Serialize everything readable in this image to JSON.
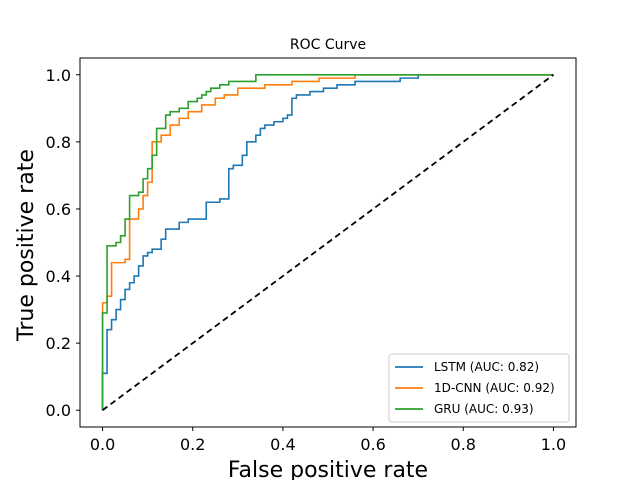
{
  "chart_data": {
    "type": "line",
    "title": "ROC Curve",
    "xlabel": "False positive rate",
    "ylabel": "True positive rate",
    "xlim": [
      -0.05,
      1.05
    ],
    "ylim": [
      -0.05,
      1.05
    ],
    "xticks": [
      "0.0",
      "0.2",
      "0.4",
      "0.6",
      "0.8",
      "1.0"
    ],
    "yticks": [
      "0.0",
      "0.2",
      "0.4",
      "0.6",
      "0.8",
      "1.0"
    ],
    "grid": false,
    "legend_position": "lower-right",
    "diagonal": {
      "x": [
        0,
        1
      ],
      "y": [
        0,
        1
      ],
      "color": "#000000",
      "style": "dashed"
    },
    "series": [
      {
        "name": "LSTM (AUC: 0.82)",
        "color": "#1f77b4",
        "x": [
          0,
          0,
          0.01,
          0.01,
          0.02,
          0.02,
          0.03,
          0.03,
          0.04,
          0.04,
          0.05,
          0.05,
          0.06,
          0.06,
          0.07,
          0.07,
          0.08,
          0.08,
          0.09,
          0.09,
          0.1,
          0.1,
          0.11,
          0.11,
          0.13,
          0.13,
          0.14,
          0.14,
          0.17,
          0.17,
          0.19,
          0.19,
          0.23,
          0.23,
          0.26,
          0.26,
          0.28,
          0.28,
          0.29,
          0.29,
          0.31,
          0.31,
          0.32,
          0.32,
          0.34,
          0.34,
          0.35,
          0.35,
          0.36,
          0.36,
          0.38,
          0.38,
          0.4,
          0.4,
          0.41,
          0.41,
          0.42,
          0.42,
          0.43,
          0.43,
          0.46,
          0.46,
          0.49,
          0.49,
          0.52,
          0.52,
          0.56,
          0.56,
          0.66,
          0.66,
          0.7,
          0.7,
          1.0
        ],
        "y": [
          0,
          0.11,
          0.11,
          0.24,
          0.24,
          0.27,
          0.27,
          0.3,
          0.3,
          0.33,
          0.33,
          0.36,
          0.36,
          0.38,
          0.38,
          0.4,
          0.4,
          0.43,
          0.43,
          0.46,
          0.46,
          0.47,
          0.47,
          0.48,
          0.48,
          0.51,
          0.51,
          0.54,
          0.54,
          0.56,
          0.56,
          0.57,
          0.57,
          0.62,
          0.62,
          0.63,
          0.63,
          0.72,
          0.72,
          0.73,
          0.73,
          0.76,
          0.76,
          0.8,
          0.8,
          0.82,
          0.82,
          0.84,
          0.84,
          0.85,
          0.85,
          0.86,
          0.86,
          0.87,
          0.87,
          0.88,
          0.88,
          0.93,
          0.93,
          0.94,
          0.94,
          0.95,
          0.95,
          0.96,
          0.96,
          0.97,
          0.97,
          0.98,
          0.98,
          0.99,
          0.99,
          1.0,
          1.0
        ]
      },
      {
        "name": "1D-CNN (AUC: 0.92)",
        "color": "#ff7f0e",
        "x": [
          0,
          0,
          0.01,
          0.01,
          0.02,
          0.02,
          0.05,
          0.05,
          0.06,
          0.06,
          0.08,
          0.08,
          0.09,
          0.09,
          0.1,
          0.1,
          0.11,
          0.11,
          0.13,
          0.13,
          0.15,
          0.15,
          0.17,
          0.17,
          0.19,
          0.19,
          0.22,
          0.22,
          0.25,
          0.25,
          0.27,
          0.27,
          0.3,
          0.3,
          0.36,
          0.36,
          0.42,
          0.42,
          0.48,
          0.48,
          0.56,
          0.56,
          0.69,
          0.69,
          1.0
        ],
        "y": [
          0,
          0.32,
          0.32,
          0.34,
          0.34,
          0.44,
          0.44,
          0.45,
          0.45,
          0.57,
          0.57,
          0.6,
          0.6,
          0.64,
          0.64,
          0.68,
          0.68,
          0.8,
          0.8,
          0.82,
          0.82,
          0.85,
          0.85,
          0.87,
          0.87,
          0.89,
          0.89,
          0.91,
          0.91,
          0.93,
          0.93,
          0.94,
          0.94,
          0.96,
          0.96,
          0.97,
          0.97,
          0.98,
          0.98,
          0.99,
          0.99,
          1.0,
          1.0,
          1.0,
          1.0
        ]
      },
      {
        "name": "GRU (AUC: 0.93)",
        "color": "#2ca02c",
        "x": [
          0,
          0,
          0.01,
          0.01,
          0.03,
          0.03,
          0.04,
          0.04,
          0.05,
          0.05,
          0.06,
          0.06,
          0.08,
          0.08,
          0.09,
          0.09,
          0.1,
          0.1,
          0.11,
          0.11,
          0.12,
          0.12,
          0.14,
          0.14,
          0.15,
          0.15,
          0.17,
          0.17,
          0.19,
          0.19,
          0.21,
          0.21,
          0.22,
          0.22,
          0.23,
          0.23,
          0.24,
          0.24,
          0.25,
          0.25,
          0.26,
          0.26,
          0.28,
          0.28,
          0.34,
          0.34,
          0.43,
          0.43,
          0.7,
          0.7,
          1.0
        ],
        "y": [
          0,
          0.29,
          0.29,
          0.49,
          0.49,
          0.5,
          0.5,
          0.52,
          0.52,
          0.57,
          0.57,
          0.64,
          0.64,
          0.65,
          0.65,
          0.69,
          0.69,
          0.72,
          0.72,
          0.76,
          0.76,
          0.84,
          0.84,
          0.88,
          0.88,
          0.89,
          0.89,
          0.9,
          0.9,
          0.92,
          0.92,
          0.93,
          0.93,
          0.94,
          0.94,
          0.95,
          0.95,
          0.96,
          0.96,
          0.96,
          0.96,
          0.97,
          0.97,
          0.98,
          0.98,
          1.0,
          1.0,
          1.0,
          1.0,
          1.0,
          1.0
        ]
      }
    ]
  }
}
